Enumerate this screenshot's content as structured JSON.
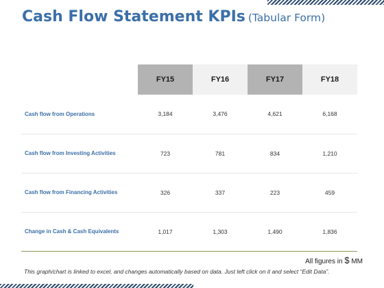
{
  "slide": {
    "title": "Cash Flow Statement KPIs",
    "subtitle": "(Tabular Form)"
  },
  "table": {
    "headers": [
      "",
      "FY15",
      "FY16",
      "FY17",
      "FY18"
    ],
    "rows": [
      {
        "label": "Cash flow from Operations",
        "values": [
          "3,184",
          "3,476",
          "4,621",
          "6,168"
        ]
      },
      {
        "label": "Cash flow from Investing Activities",
        "values": [
          "723",
          "781",
          "834",
          "1,210"
        ]
      },
      {
        "label": "Cash flow from Financing Activities",
        "values": [
          "326",
          "337",
          "223",
          "459"
        ]
      },
      {
        "label": "Change in Cash & Cash Equivalents",
        "values": [
          "1,017",
          "1,303",
          "1,490",
          "1,836"
        ]
      }
    ]
  },
  "units": {
    "prefix": "All figures in",
    "currency": "$",
    "suffix": "MM"
  },
  "footnote": "This graph/chart is linked to excel, and changes automatically based on data. Just left click on it and select “Edit Data”.",
  "colors": {
    "title": "#3b6fa8",
    "header_dark": "#b3b3b3",
    "header_light": "#f1f1f1",
    "accent_line": "#8a9a5b",
    "hatch": "#2b4a6e"
  }
}
